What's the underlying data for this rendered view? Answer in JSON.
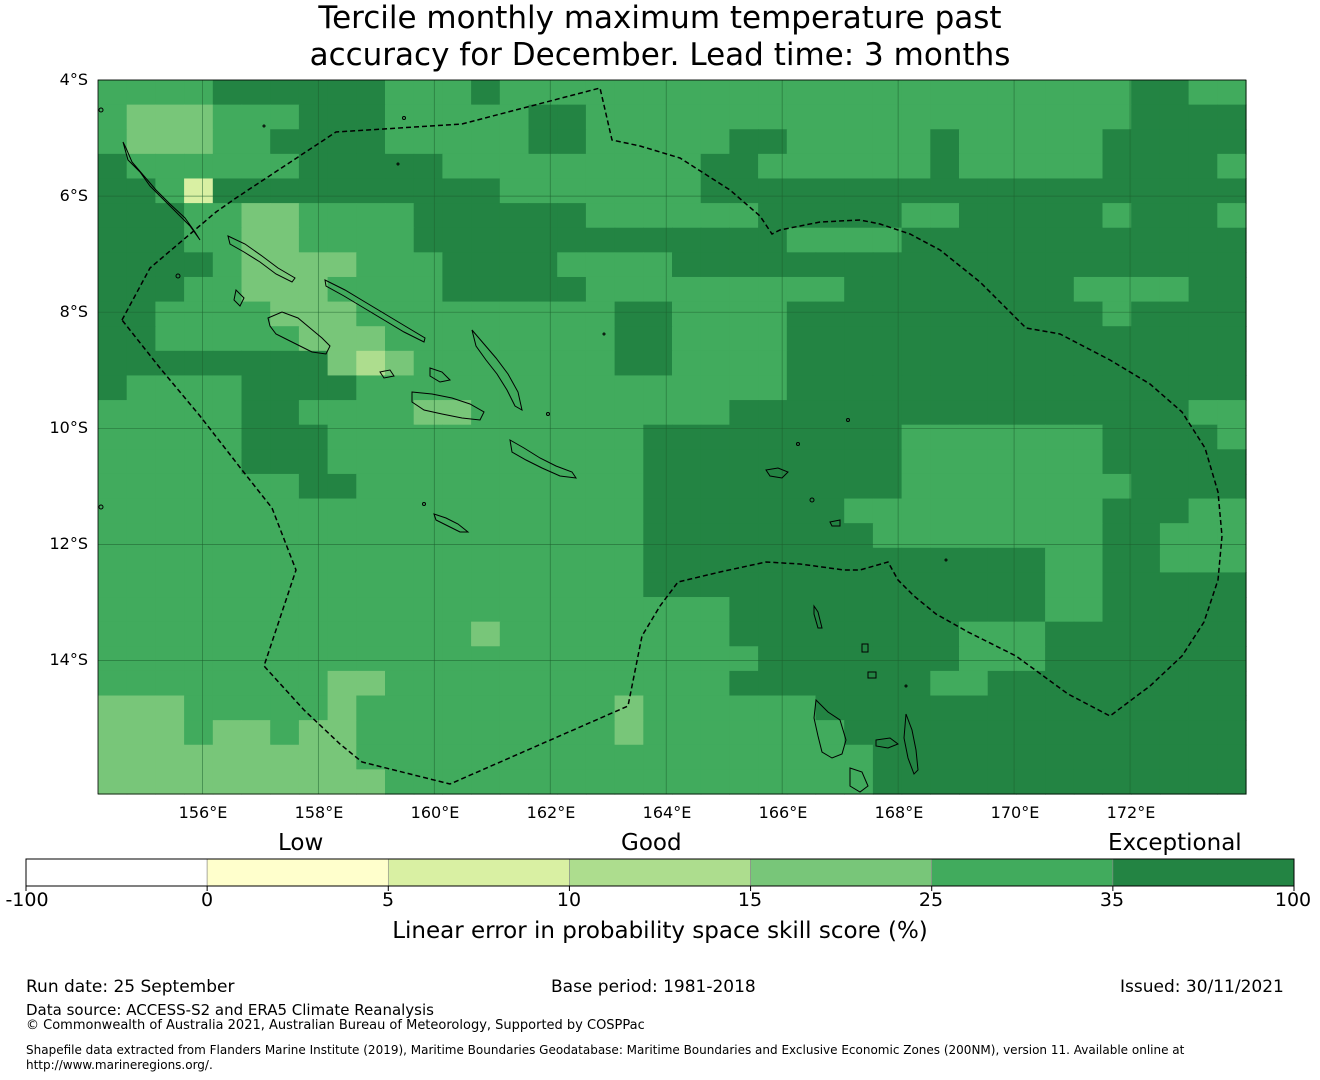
{
  "title": {
    "line1": "Tercile monthly maximum temperature past",
    "line2": "accuracy for December. Lead time: 3 months"
  },
  "map": {
    "lat_labels": [
      "4°S",
      "6°S",
      "8°S",
      "10°S",
      "12°S",
      "14°S"
    ],
    "lon_labels": [
      "156°E",
      "158°E",
      "160°E",
      "162°E",
      "164°E",
      "166°E",
      "168°E",
      "170°E",
      "172°E"
    ],
    "lon_range": [
      154.2,
      174.0
    ],
    "lat_range": [
      -4.0,
      -16.3
    ],
    "graticule_lons": [
      156,
      158,
      160,
      162,
      164,
      166,
      168,
      170,
      172
    ],
    "graticule_lats": [
      -4,
      -6,
      -8,
      -10,
      -12,
      -14
    ],
    "grid": {
      "col_labels_lon_start": 154.2,
      "row_labels_lat_start": -4.0,
      "legend": "0=<0, 1=0-5, 2=5-10, 3=10-15, 4=15-25, 5=25-35, 6=35-100",
      "rows": [
        "5555666666555655555555555555555555556655",
        "5444555666555556655555555555555555556666",
        "5444556666555556655555665555565555566666",
        "6555555666665555555556655555565555566665",
        "6652666666666655555556666666666666666666",
        "6665544555566666655555566666556666656665",
        "6665544555566666666666665555666666666666",
        "6666544445556666555566666666666666666666",
        "6665544455556666655555555566666666555566",
        "6655554445555555556655556666666666656666",
        "6655555444555555556655556666666666666666",
        "6666666643455555556655556666666666666666",
        "6555566665555555555555556666666666666666",
        "5555566555544555555555666666666666666655",
        "5555566655555555555666666666555555566665",
        "5555566655555555555666666666555555566666",
        "5555555665555555555666666666555555556666",
        "5555555555555555555666666655555555566655",
        "5555555555555555555666666665555555566555",
        "5555555555555555555666666666666665566555",
        "5555555555555555555666666666666665566666",
        "5555555555555555555555666666666665566666",
        "5555555555555455555555666666665556666666",
        "5555555555555555555555566666665556666666",
        "5555555544555555555555666666655666666666",
        "4445555545555555554555555666666666666666",
        "4445445445555555554555555566666666666666",
        "4444444445555555555555555556666666666666",
        "4444444444555555555555555556666666666666"
      ]
    }
  },
  "colorbar": {
    "colors": [
      "#ffffff",
      "#ffffcc",
      "#d9f0a3",
      "#addd8e",
      "#78c679",
      "#41ab5d",
      "#238443"
    ],
    "bounds": [
      -100,
      0,
      5,
      10,
      15,
      25,
      35,
      100
    ],
    "tick_labels": [
      "-100",
      "0",
      "5",
      "10",
      "15",
      "25",
      "35",
      "100"
    ],
    "category_labels": {
      "low": "Low",
      "good": "Good",
      "exceptional": "Exceptional"
    },
    "axis_label": "Linear error in probability space skill score (%)"
  },
  "footer": {
    "run_date": "Run date: 25 September",
    "base_period": "Base period: 1981-2018",
    "issued": "Issued: 30/11/2021",
    "data_source": "Data source: ACCESS-S2 and ERA5 Climate Reanalysis",
    "copyright": "© Commonwealth of Australia 2021, Australian Bureau of Meteorology, Supported by COSPPac",
    "shapefile_line1": "Shapefile data extracted from Flanders Marine Institute (2019), Maritime Boundaries Geodatabase: Maritime Boundaries and Exclusive Economic Zones (200NM), version 11. Available online at",
    "shapefile_line2": "http://www.marineregions.org/."
  }
}
